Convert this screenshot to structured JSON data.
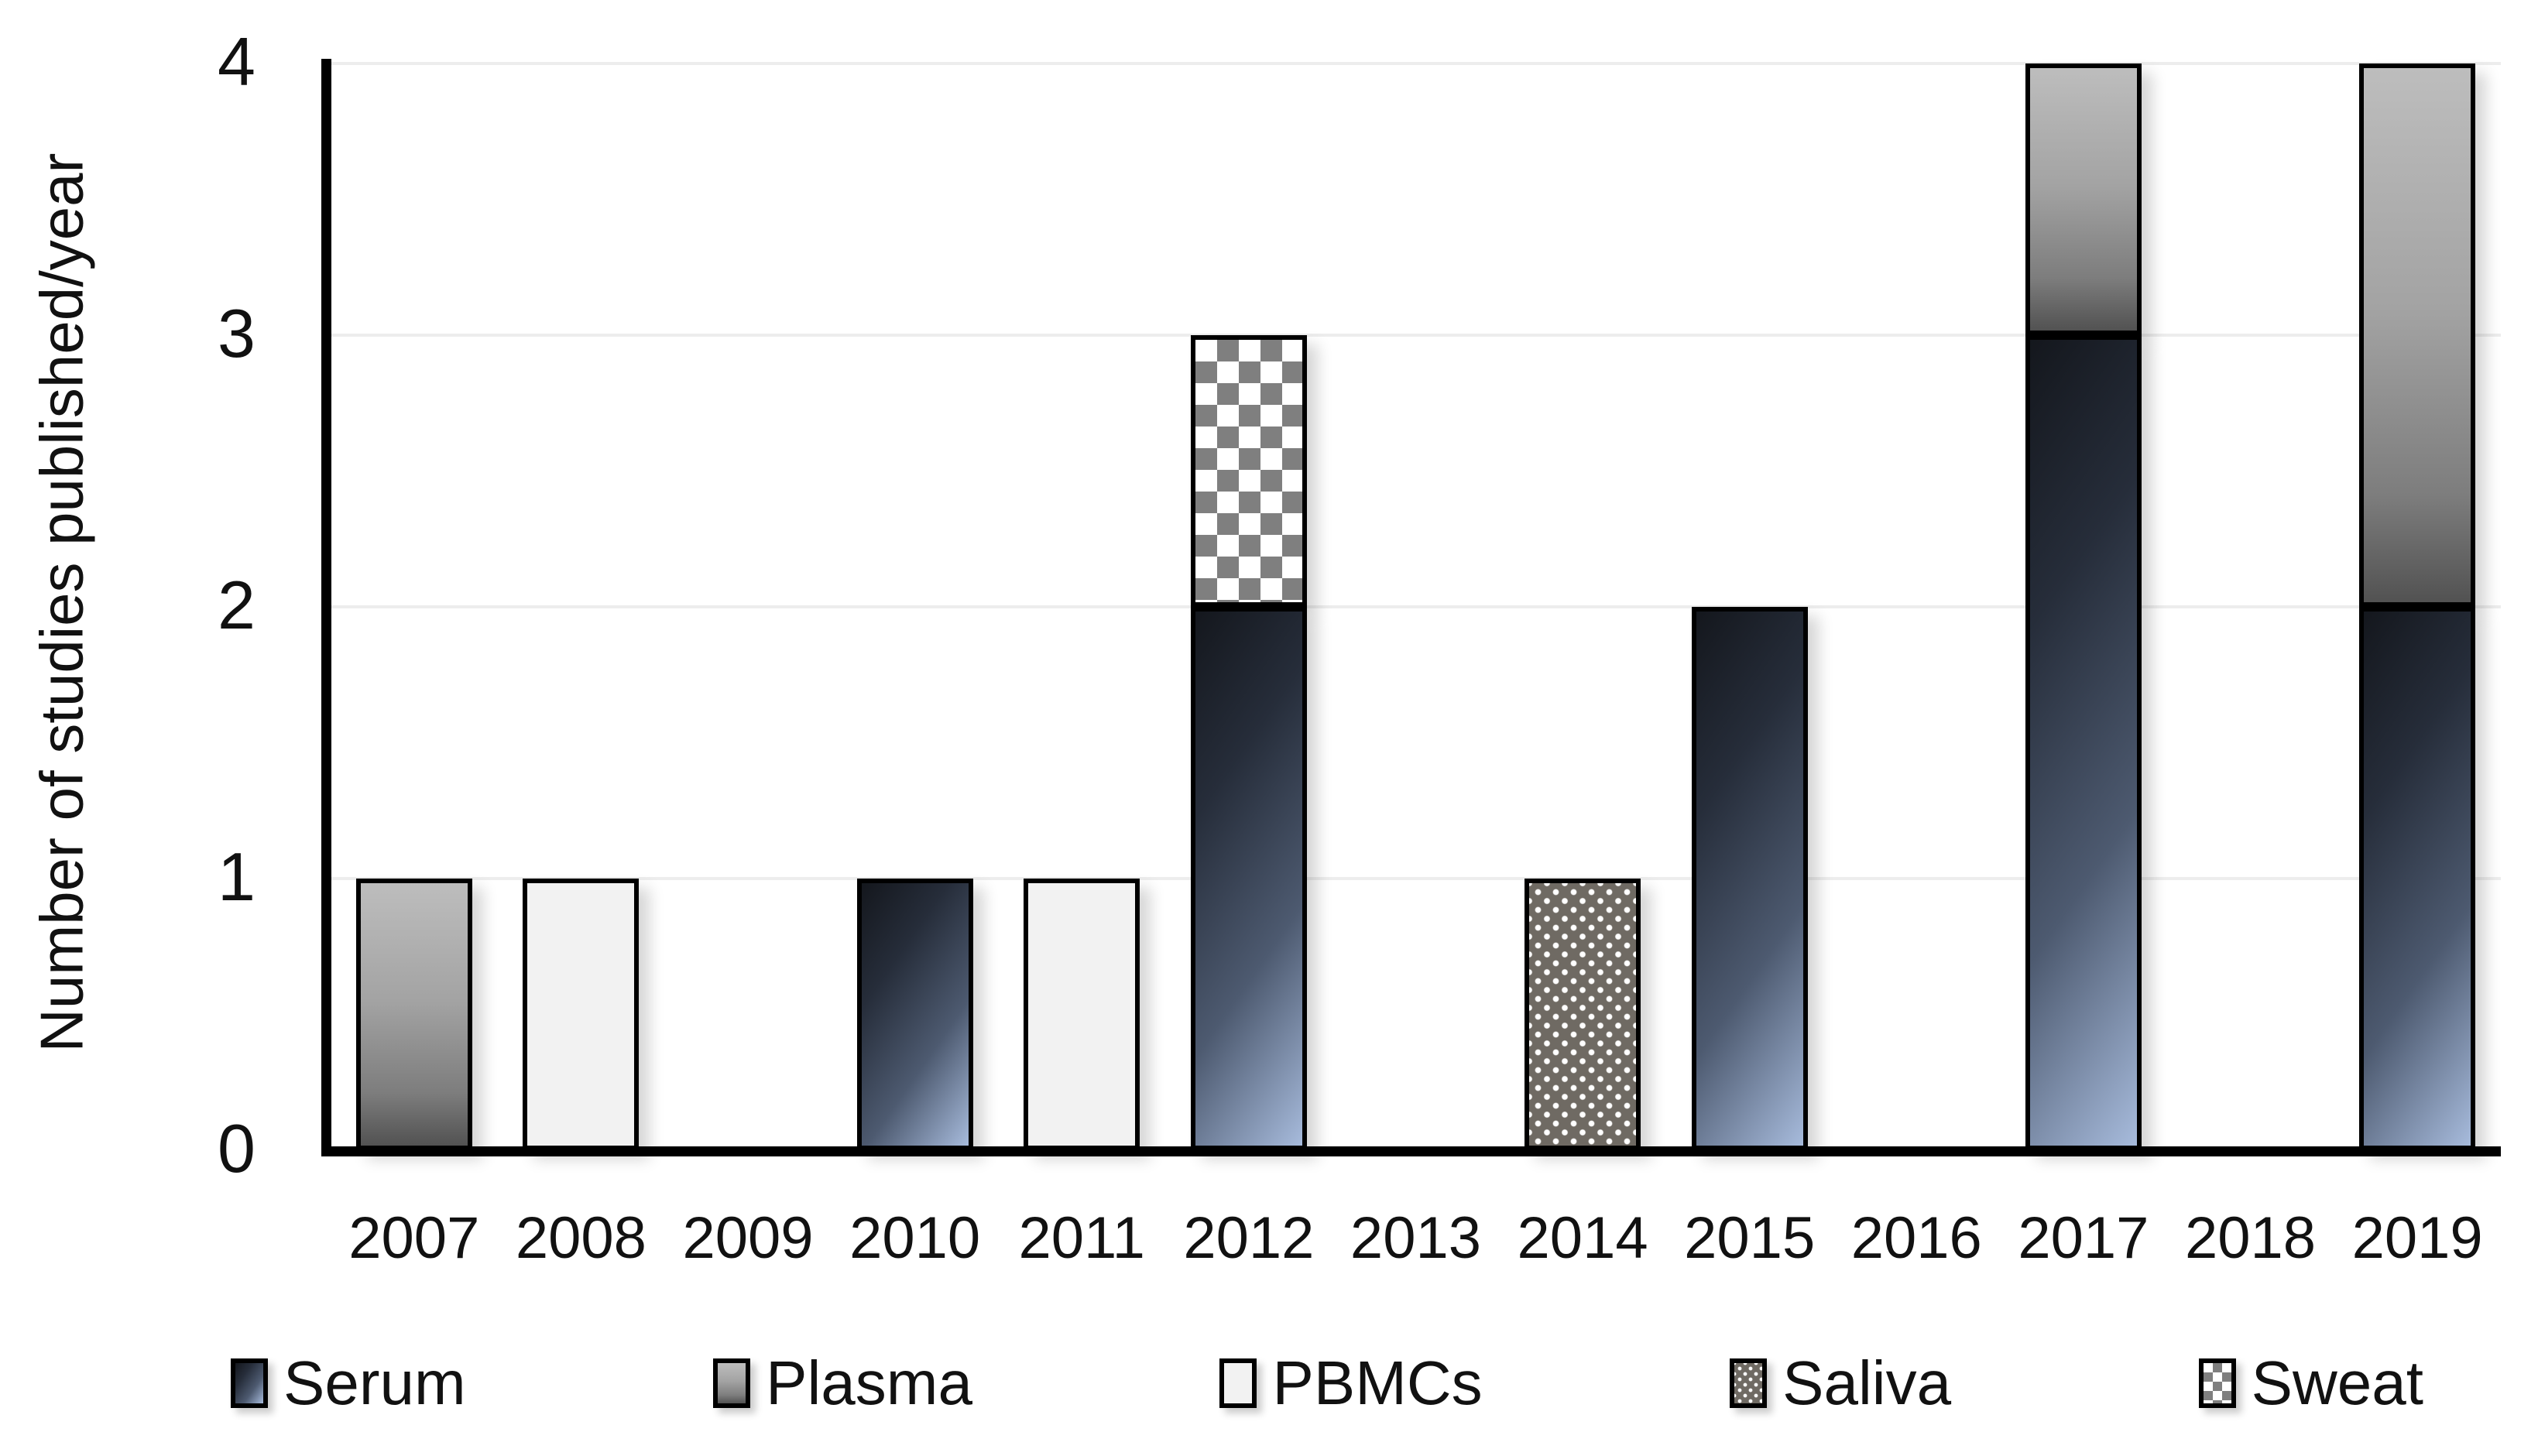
{
  "styles": {
    "background": "#ffffff",
    "grid_color": "#ededed",
    "axis_color": "#000000",
    "text_color": "#111111",
    "serum_gradient": [
      "#14171d",
      "#262d3a",
      "#4d5a70",
      "#a7bbdc"
    ],
    "plasma_gradient": [
      "#bdbdbd",
      "#a3a3a3",
      "#7d7d7d",
      "#525252"
    ],
    "pbmcs_fill": "#f2f2f2",
    "saliva_base": "#6f6a63",
    "saliva_dot": "#ffffff",
    "sweat_check": "#7f7f7f",
    "sweat_bg": "#ffffff"
  },
  "chart_data": {
    "type": "bar",
    "stacked": true,
    "title": "",
    "xlabel": "",
    "ylabel": "Number of studies published/year",
    "ylim": [
      0,
      4
    ],
    "yticks": [
      0,
      1,
      2,
      3,
      4
    ],
    "grid": true,
    "legend_position": "bottom",
    "categories": [
      "2007",
      "2008",
      "2009",
      "2010",
      "2011",
      "2012",
      "2013",
      "2014",
      "2015",
      "2016",
      "2017",
      "2018",
      "2019"
    ],
    "series": [
      {
        "name": "Serum",
        "pattern": "blue-diagonal-gradient",
        "values": [
          0,
          0,
          0,
          1,
          0,
          2,
          0,
          0,
          2,
          0,
          3,
          0,
          2
        ]
      },
      {
        "name": "Plasma",
        "pattern": "gray-vertical-gradient",
        "values": [
          1,
          0,
          0,
          0,
          0,
          0,
          0,
          0,
          0,
          0,
          1,
          0,
          2
        ]
      },
      {
        "name": "PBMCs",
        "pattern": "flat-light-gray",
        "values": [
          0,
          1,
          0,
          0,
          1,
          0,
          0,
          0,
          0,
          0,
          0,
          0,
          0
        ]
      },
      {
        "name": "Saliva",
        "pattern": "dark-gray-white-dots",
        "values": [
          0,
          0,
          0,
          0,
          0,
          0,
          0,
          1,
          0,
          0,
          0,
          0,
          0
        ]
      },
      {
        "name": "Sweat",
        "pattern": "checkerboard",
        "values": [
          0,
          0,
          0,
          0,
          0,
          1,
          0,
          0,
          0,
          0,
          0,
          0,
          0
        ]
      }
    ],
    "totals_by_year": [
      1,
      1,
      0,
      1,
      1,
      3,
      0,
      1,
      2,
      0,
      4,
      0,
      4
    ]
  }
}
